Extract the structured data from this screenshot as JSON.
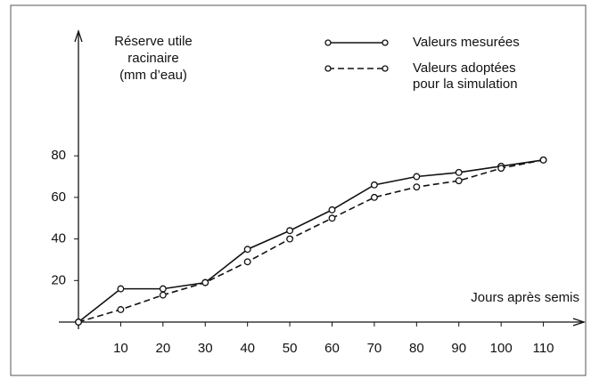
{
  "chart_data": {
    "type": "line",
    "ylabel_lines": [
      "Réserve utile",
      "racinaire",
      "(mm d’eau)"
    ],
    "xlabel": "Jours après semis",
    "x": [
      0,
      10,
      20,
      30,
      40,
      50,
      60,
      70,
      80,
      90,
      100,
      110
    ],
    "series": [
      {
        "name": "Valeurs mesurées",
        "color": "#111111",
        "dash": false,
        "values": [
          0,
          16,
          16,
          19,
          35,
          44,
          54,
          66,
          70,
          72,
          75,
          78
        ]
      },
      {
        "name": "Valeurs adoptées pour la simulation",
        "color": "#111111",
        "dash": true,
        "values": [
          0,
          6,
          13,
          19,
          29,
          40,
          50,
          60,
          65,
          68,
          74,
          78
        ]
      }
    ],
    "xlim": [
      0,
      120
    ],
    "ylim": [
      0,
      140
    ],
    "xticks": [
      10,
      20,
      30,
      40,
      50,
      60,
      70,
      80,
      90,
      100,
      110
    ],
    "yticks": [
      20,
      40,
      60,
      80
    ]
  }
}
